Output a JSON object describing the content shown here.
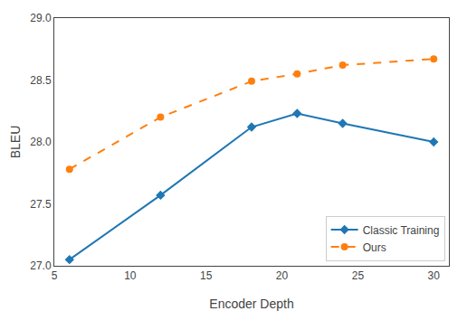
{
  "chart_data": {
    "type": "line",
    "x": [
      6,
      12,
      18,
      21,
      24,
      30
    ],
    "series": [
      {
        "name": "Classic Training",
        "values": [
          27.05,
          27.57,
          28.12,
          28.23,
          28.15,
          28.0
        ],
        "marker": "diamond",
        "line_style": "solid"
      },
      {
        "name": "Ours",
        "values": [
          27.78,
          28.2,
          28.49,
          28.55,
          28.62,
          28.67
        ],
        "marker": "circle",
        "line_style": "dashed"
      }
    ],
    "xlabel": "Encoder Depth",
    "ylabel": "BLEU",
    "xlim": [
      5,
      31
    ],
    "ylim": [
      27.0,
      29.0
    ],
    "xticks": [
      5,
      10,
      15,
      20,
      25,
      30
    ],
    "yticks": [
      {
        "value": 27.0,
        "label": "27.0"
      },
      27.5,
      {
        "value": 28.0,
        "label": "28.0"
      },
      28.5,
      {
        "value": 29.0,
        "label": "29.0"
      }
    ],
    "grid": false,
    "legend": "lower right"
  }
}
